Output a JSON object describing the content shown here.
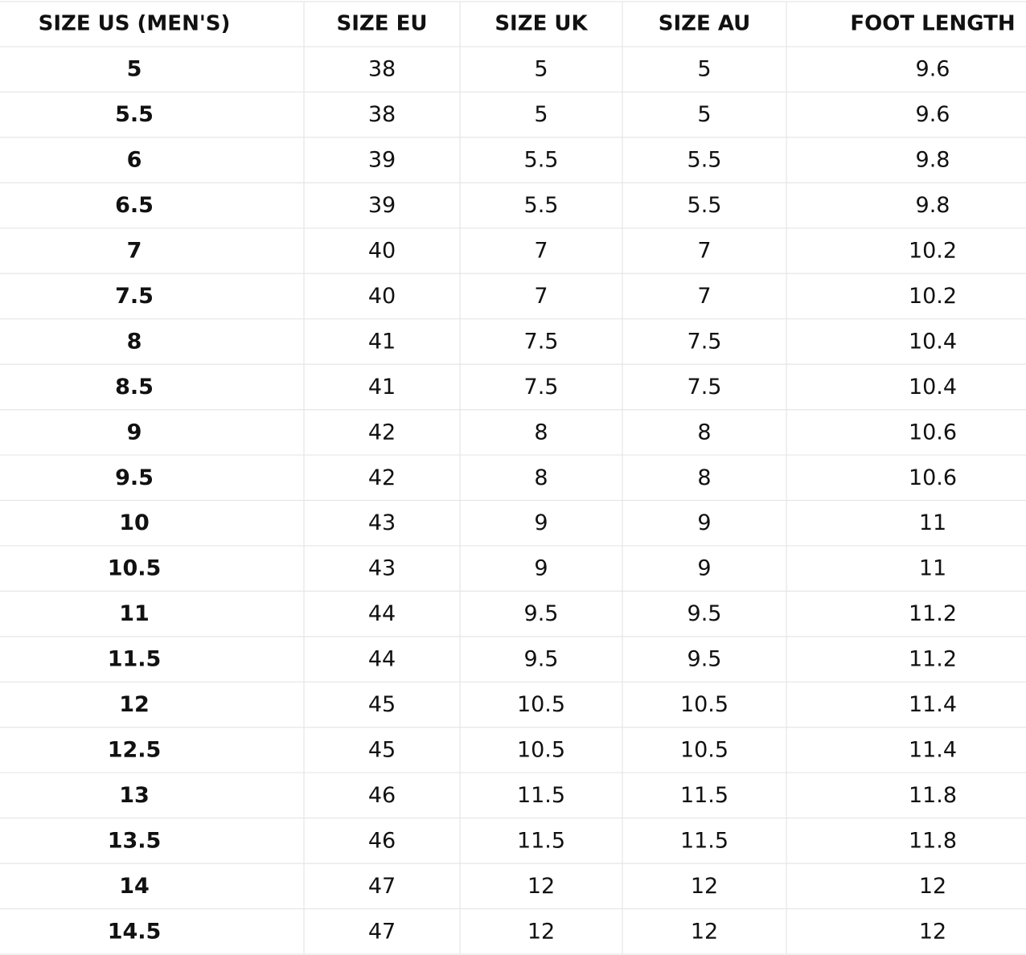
{
  "table": {
    "header": [
      "SIZE US (MEN'S)",
      "SIZE EU",
      "SIZE UK",
      "SIZE AU",
      "FOOT LENGTH"
    ],
    "rows": [
      [
        "5",
        "38",
        "5",
        "5",
        "9.6"
      ],
      [
        "5.5",
        "38",
        "5",
        "5",
        "9.6"
      ],
      [
        "6",
        "39",
        "5.5",
        "5.5",
        "9.8"
      ],
      [
        "6.5",
        "39",
        "5.5",
        "5.5",
        "9.8"
      ],
      [
        "7",
        "40",
        "7",
        "7",
        "10.2"
      ],
      [
        "7.5",
        "40",
        "7",
        "7",
        "10.2"
      ],
      [
        "8",
        "41",
        "7.5",
        "7.5",
        "10.4"
      ],
      [
        "8.5",
        "41",
        "7.5",
        "7.5",
        "10.4"
      ],
      [
        "9",
        "42",
        "8",
        "8",
        "10.6"
      ],
      [
        "9.5",
        "42",
        "8",
        "8",
        "10.6"
      ],
      [
        "10",
        "43",
        "9",
        "9",
        "11"
      ],
      [
        "10.5",
        "43",
        "9",
        "9",
        "11"
      ],
      [
        "11",
        "44",
        "9.5",
        "9.5",
        "11.2"
      ],
      [
        "11.5",
        "44",
        "9.5",
        "9.5",
        "11.2"
      ],
      [
        "12",
        "45",
        "10.5",
        "10.5",
        "11.4"
      ],
      [
        "12.5",
        "45",
        "10.5",
        "10.5",
        "11.4"
      ],
      [
        "13",
        "46",
        "11.5",
        "11.5",
        "11.8"
      ],
      [
        "13.5",
        "46",
        "11.5",
        "11.5",
        "11.8"
      ],
      [
        "14",
        "47",
        "12",
        "12",
        "12"
      ],
      [
        "14.5",
        "47",
        "12",
        "12",
        "12"
      ]
    ]
  }
}
